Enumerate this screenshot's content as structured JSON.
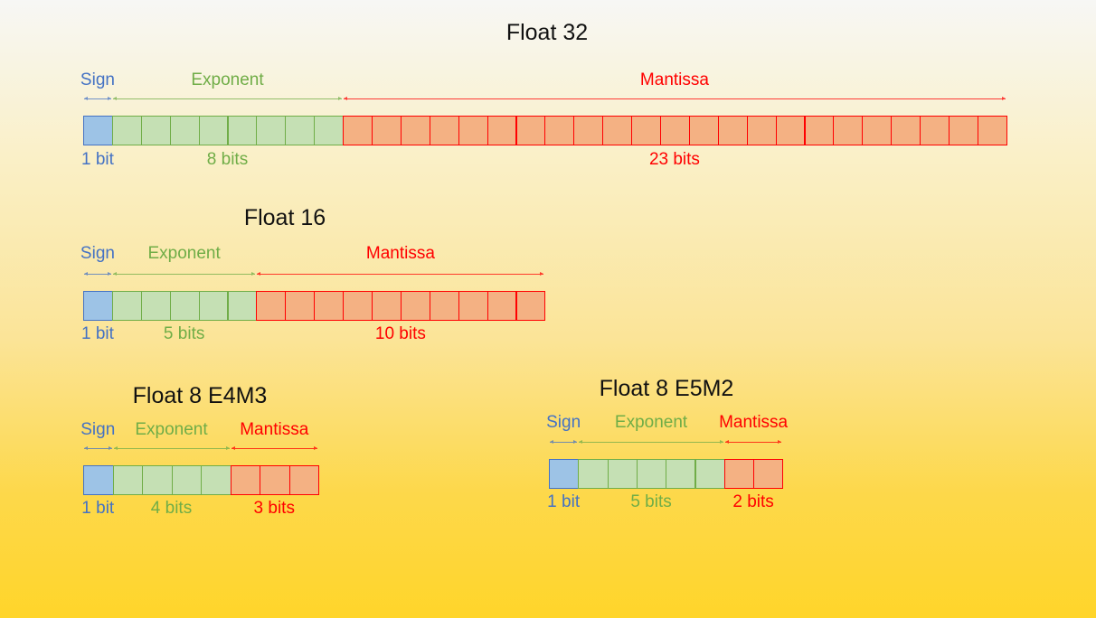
{
  "colors": {
    "sign": "#4472c4",
    "exponent": "#70ad47",
    "mantissa": "#ff0000"
  },
  "formats": [
    {
      "title": "Float 32",
      "sign_label": "Sign",
      "exponent_label": "Exponent",
      "mantissa_label": "Mantissa",
      "sign_bits": 1,
      "exponent_bits": 8,
      "mantissa_bits": 23,
      "sign_count": "1 bit",
      "exponent_count": "8 bits",
      "mantissa_count": "23 bits"
    },
    {
      "title": "Float 16",
      "sign_label": "Sign",
      "exponent_label": "Exponent",
      "mantissa_label": "Mantissa",
      "sign_bits": 1,
      "exponent_bits": 5,
      "mantissa_bits": 10,
      "sign_count": "1 bit",
      "exponent_count": "5 bits",
      "mantissa_count": "10 bits"
    },
    {
      "title": "Float 8 E4M3",
      "sign_label": "Sign",
      "exponent_label": "Exponent",
      "mantissa_label": "Mantissa",
      "sign_bits": 1,
      "exponent_bits": 4,
      "mantissa_bits": 3,
      "sign_count": "1 bit",
      "exponent_count": "4 bits",
      "mantissa_count": "3 bits"
    },
    {
      "title": "Float 8 E5M2",
      "sign_label": "Sign",
      "exponent_label": "Exponent",
      "mantissa_label": "Mantissa",
      "sign_bits": 1,
      "exponent_bits": 5,
      "mantissa_bits": 2,
      "sign_count": "1 bit",
      "exponent_count": "5 bits",
      "mantissa_count": "2 bits"
    }
  ]
}
